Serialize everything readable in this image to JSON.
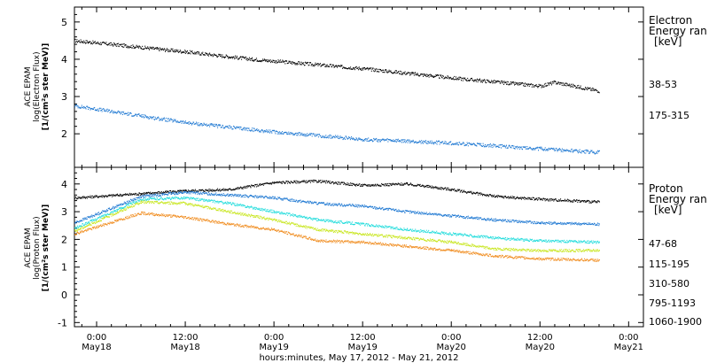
{
  "xlabel": "hours:minutes, May 17, 2012 - May 21, 2012",
  "x_ticks": [
    {
      "time": "0:00",
      "day": "May18"
    },
    {
      "time": "12:00",
      "day": "May18"
    },
    {
      "time": "0:00",
      "day": "May19"
    },
    {
      "time": "12:00",
      "day": "May19"
    },
    {
      "time": "0:00",
      "day": "May20"
    },
    {
      "time": "12:00",
      "day": "May20"
    },
    {
      "time": "0:00",
      "day": "May21"
    }
  ],
  "chart_data": [
    {
      "type": "scatter",
      "instrument": "ACE EPAM",
      "ylabel_line1": "log(Electron Flux)",
      "ylabel_line2": "[1/(cm²s ster MeV)]",
      "legend_title_line1": "Electron",
      "legend_title_line2": "Energy ran",
      "legend_unit": "[keV]",
      "xlim": [
        "2012-05-17T21:00",
        "2012-05-21T02:00"
      ],
      "ylim": [
        1.1,
        5.4
      ],
      "yticks": [
        2,
        3,
        4,
        5
      ],
      "series": [
        {
          "name": "38-53",
          "color": "#000000",
          "x": [
            "2012-05-17T21:00",
            "2012-05-18T12:00",
            "2012-05-18T21:00",
            "2012-05-19T12:00",
            "2012-05-20T00:00",
            "2012-05-20T12:00",
            "2012-05-20T14:00",
            "2012-05-20T20:00"
          ],
          "y": [
            4.5,
            4.2,
            4.0,
            3.75,
            3.5,
            3.28,
            3.38,
            3.15
          ]
        },
        {
          "name": "175-315",
          "color": "#1e78d2",
          "x": [
            "2012-05-17T21:00",
            "2012-05-18T12:00",
            "2012-05-19T00:00",
            "2012-05-19T12:00",
            "2012-05-20T00:00",
            "2012-05-20T12:00",
            "2012-05-20T20:00"
          ],
          "y": [
            2.75,
            2.3,
            2.05,
            1.85,
            1.75,
            1.6,
            1.5
          ]
        }
      ]
    },
    {
      "type": "scatter",
      "instrument": "ACE EPAM",
      "ylabel_line1": "log(Proton Flux)",
      "ylabel_line2": "[1/(cm²s ster MeV)]",
      "legend_title_line1": "Proton",
      "legend_title_line2": "Energy ran",
      "legend_unit": "[keV]",
      "xlim": [
        "2012-05-17T21:00",
        "2012-05-21T02:00"
      ],
      "ylim": [
        -1.15,
        4.6
      ],
      "yticks": [
        -1,
        0,
        1,
        2,
        3,
        4
      ],
      "series": [
        {
          "name": "47-68",
          "color": "#000000",
          "x": [
            "2012-05-17T21:00",
            "2012-05-18T06:00",
            "2012-05-18T12:00",
            "2012-05-18T18:00",
            "2012-05-19T00:00",
            "2012-05-19T06:00",
            "2012-05-19T12:00",
            "2012-05-19T18:00",
            "2012-05-20T00:00",
            "2012-05-20T06:00",
            "2012-05-20T12:00",
            "2012-05-20T20:00"
          ],
          "y": [
            3.5,
            3.65,
            3.75,
            3.8,
            4.05,
            4.1,
            3.95,
            4.0,
            3.8,
            3.55,
            3.45,
            3.35
          ]
        },
        {
          "name": "115-195",
          "color": "#1e78d2",
          "x": [
            "2012-05-17T21:00",
            "2012-05-18T06:00",
            "2012-05-18T12:00",
            "2012-05-18T18:00",
            "2012-05-19T00:00",
            "2012-05-19T06:00",
            "2012-05-19T12:00",
            "2012-05-19T18:00",
            "2012-05-20T00:00",
            "2012-05-20T06:00",
            "2012-05-20T12:00",
            "2012-05-20T20:00"
          ],
          "y": [
            2.6,
            3.55,
            3.7,
            3.6,
            3.5,
            3.3,
            3.2,
            3.0,
            2.85,
            2.7,
            2.6,
            2.55
          ]
        },
        {
          "name": "310-580",
          "color": "#22dcdc",
          "x": [
            "2012-05-17T21:00",
            "2012-05-18T06:00",
            "2012-05-18T12:00",
            "2012-05-18T18:00",
            "2012-05-19T00:00",
            "2012-05-19T06:00",
            "2012-05-19T12:00",
            "2012-05-19T18:00",
            "2012-05-20T00:00",
            "2012-05-20T06:00",
            "2012-05-20T12:00",
            "2012-05-20T20:00"
          ],
          "y": [
            2.4,
            3.45,
            3.5,
            3.3,
            3.0,
            2.7,
            2.55,
            2.35,
            2.2,
            2.05,
            1.95,
            1.9
          ]
        },
        {
          "name": "795-1193",
          "color": "#c8e61e",
          "x": [
            "2012-05-17T21:00",
            "2012-05-18T06:00",
            "2012-05-18T12:00",
            "2012-05-18T18:00",
            "2012-05-19T00:00",
            "2012-05-19T06:00",
            "2012-05-19T12:00",
            "2012-05-19T18:00",
            "2012-05-20T00:00",
            "2012-05-20T06:00",
            "2012-05-20T12:00",
            "2012-05-20T20:00"
          ],
          "y": [
            2.3,
            3.35,
            3.3,
            3.0,
            2.7,
            2.35,
            2.2,
            2.05,
            1.9,
            1.65,
            1.6,
            1.6
          ]
        },
        {
          "name": "1060-1900",
          "color": "#f08c1e",
          "x": [
            "2012-05-17T21:00",
            "2012-05-18T06:00",
            "2012-05-18T12:00",
            "2012-05-18T18:00",
            "2012-05-19T00:00",
            "2012-05-19T06:00",
            "2012-05-19T12:00",
            "2012-05-19T18:00",
            "2012-05-20T00:00",
            "2012-05-20T06:00",
            "2012-05-20T12:00",
            "2012-05-20T20:00"
          ],
          "y": [
            2.2,
            2.95,
            2.8,
            2.55,
            2.35,
            1.95,
            1.9,
            1.75,
            1.6,
            1.4,
            1.3,
            1.25
          ]
        }
      ]
    }
  ]
}
